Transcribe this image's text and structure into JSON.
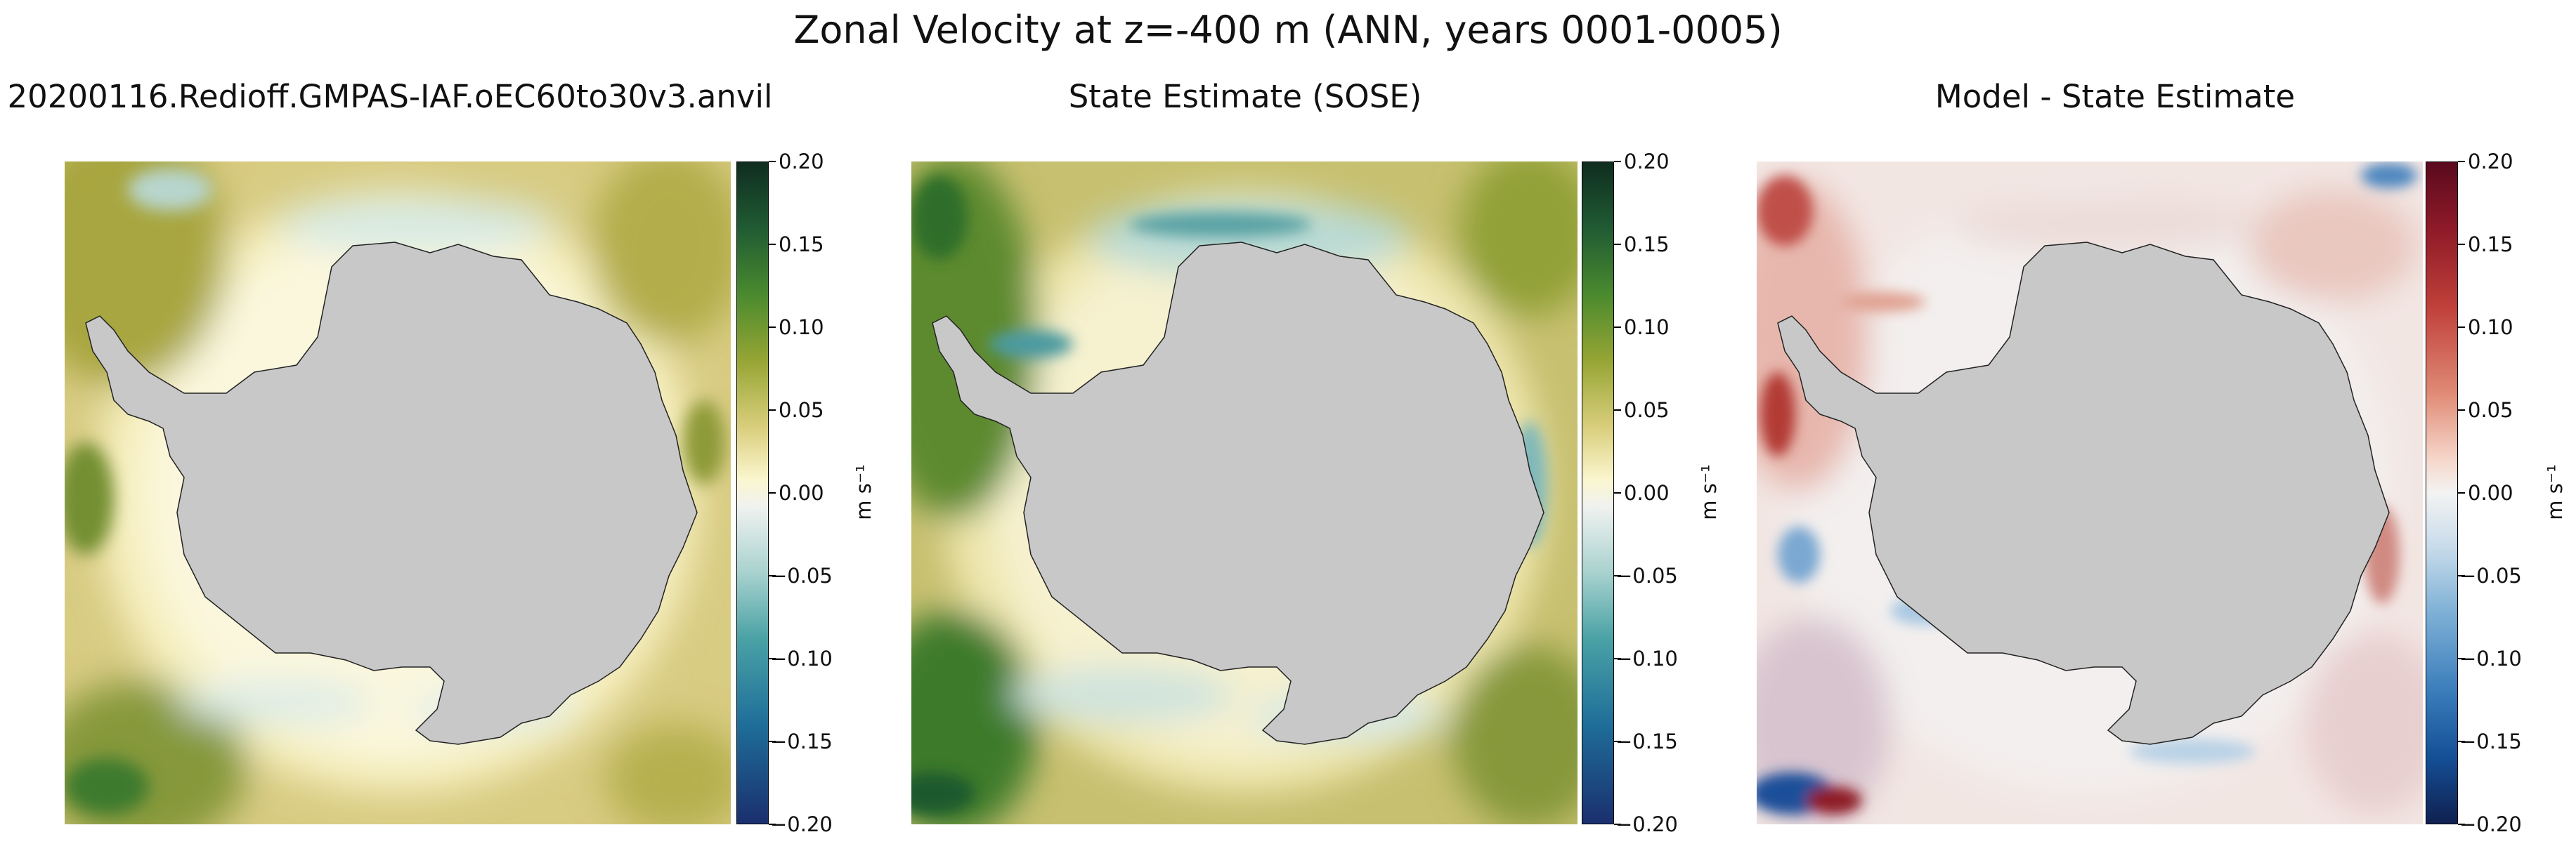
{
  "figure": {
    "title": "Zonal Velocity at z=-400 m (ANN, years 0001-0005)"
  },
  "panels": [
    {
      "title": "20200116.Redioff.GMPAS-IAF.oEC60to30v3.anvil",
      "colormap": "green-yellow-white-blue",
      "colorbar": {
        "label": "m s⁻¹",
        "ticks": [
          "0.20",
          "0.15",
          "0.10",
          "0.05",
          "0.00",
          "−0.05",
          "−0.10",
          "−0.15",
          "−0.20"
        ],
        "colors": [
          "#0f2d1f",
          "#205b33",
          "#4a8a2e",
          "#96a534",
          "#d9ce7c",
          "#fbf6cf",
          "#f0f2f0",
          "#a9d2cf",
          "#4aa2a5",
          "#1f6e9a",
          "#1a2f6e"
        ]
      }
    },
    {
      "title": "State Estimate (SOSE)",
      "colormap": "green-yellow-white-blue",
      "colorbar": {
        "label": "m s⁻¹",
        "ticks": [
          "0.20",
          "0.15",
          "0.10",
          "0.05",
          "0.00",
          "−0.05",
          "−0.10",
          "−0.15",
          "−0.20"
        ],
        "colors": [
          "#0f2d1f",
          "#205b33",
          "#4a8a2e",
          "#96a534",
          "#d9ce7c",
          "#fbf6cf",
          "#f0f2f0",
          "#a9d2cf",
          "#4aa2a5",
          "#1f6e9a",
          "#1a2f6e"
        ]
      }
    },
    {
      "title": "Model - State Estimate",
      "colormap": "red-white-blue",
      "colorbar": {
        "label": "m s⁻¹",
        "ticks": [
          "0.20",
          "0.15",
          "0.10",
          "0.05",
          "0.00",
          "−0.05",
          "−0.10",
          "−0.15",
          "−0.20"
        ],
        "colors": [
          "#5a0a1e",
          "#8e1a28",
          "#c0403a",
          "#e08b76",
          "#f6d7cb",
          "#f3f3f3",
          "#c9dceb",
          "#7fb1d6",
          "#3a7dbb",
          "#144f96",
          "#102050"
        ]
      }
    }
  ],
  "chart_data": {
    "type": "heatmap",
    "title": "Zonal Velocity at z=-400 m (ANN, years 0001-0005)",
    "region": "Antarctica (south polar stereographic)",
    "land_color": "#c8c8c8",
    "panels": [
      {
        "title": "20200116.Redioff.GMPAS-IAF.oEC60to30v3.anvil",
        "vmin": -0.2,
        "vmax": 0.2,
        "units": "m s⁻¹"
      },
      {
        "title": "State Estimate (SOSE)",
        "vmin": -0.2,
        "vmax": 0.2,
        "units": "m s⁻¹"
      },
      {
        "title": "Model - State Estimate",
        "vmin": -0.2,
        "vmax": 0.2,
        "units": "m s⁻¹"
      }
    ]
  }
}
